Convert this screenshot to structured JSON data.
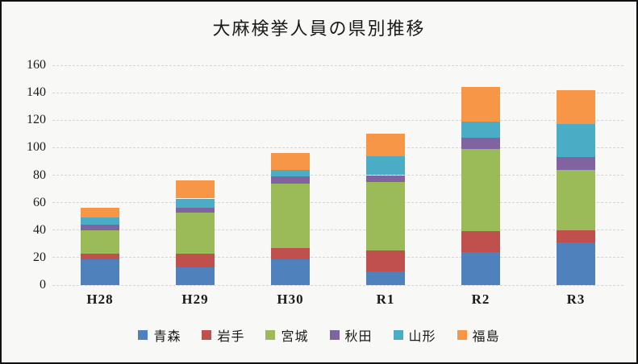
{
  "chart_data": {
    "type": "bar",
    "stacked": true,
    "title": "大麻検挙人員の県別推移",
    "categories": [
      "H28",
      "H29",
      "H30",
      "R1",
      "R2",
      "R3"
    ],
    "series": [
      {
        "name": "青森",
        "color": "#4F81BD",
        "values": [
          19,
          13,
          19,
          10,
          24,
          31
        ]
      },
      {
        "name": "岩手",
        "color": "#C0504D",
        "values": [
          4,
          10,
          8,
          15,
          15,
          9
        ]
      },
      {
        "name": "宮城",
        "color": "#9BBB59",
        "values": [
          17,
          30,
          47,
          50,
          60,
          44
        ]
      },
      {
        "name": "秋田",
        "color": "#8064A2",
        "values": [
          4,
          3,
          5,
          5,
          8,
          9
        ]
      },
      {
        "name": "山形",
        "color": "#4BACC6",
        "values": [
          5,
          7,
          5,
          14,
          12,
          24
        ]
      },
      {
        "name": "福島",
        "color": "#F79646",
        "values": [
          7,
          13,
          12,
          16,
          25,
          25
        ]
      }
    ],
    "totals": [
      56,
      76,
      96,
      110,
      144,
      142
    ],
    "ylim": [
      0,
      160
    ],
    "ytick_step": 20,
    "yticks": [
      "0",
      "20",
      "40",
      "60",
      "80",
      "100",
      "120",
      "140",
      "160"
    ],
    "grid": true,
    "gridline_style": "dashed",
    "legend_position": "bottom",
    "xlabel": "",
    "ylabel": ""
  },
  "style": {
    "background": "#f8f8f6",
    "border_color": "#111111",
    "gridline_color": "#d5d5d3",
    "text_color": "#1a1a1a"
  }
}
